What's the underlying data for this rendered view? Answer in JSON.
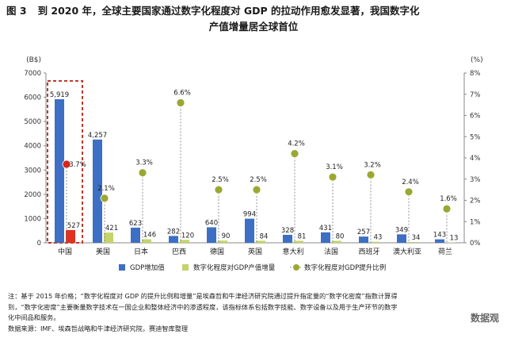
{
  "title": {
    "figure_no": "图 3",
    "line1": "到 2020 年，全球主要国家通过数字化程度对 GDP 的拉动作用愈发显著，我国数字化",
    "line2": "产值增量居全球首位"
  },
  "notes": {
    "line1": "注：基于 2015 年价格；“数字化程度对 GDP 的提升比例和增量”是埃森哲和牛津经济研究院通过提升指定量的“数字化密度”指数计算得",
    "line2": "到，“数字化密度”主要衡量数字技术在一国企业和整体经济中的渗透程度，该指标体系包括数字技能、数字设备以及用于生产环节的数字",
    "line3": "化中间品和服务。",
    "line4": "数据来源：IMF、埃森哲战略和牛津经济研究院，赛迪智库整理"
  },
  "watermark": "数据观",
  "chart_data": {
    "type": "bar",
    "left_axis_label": "(B$)",
    "right_axis_label": "(%)",
    "ylim_left": [
      0,
      7000
    ],
    "ylim_right": [
      0,
      8
    ],
    "left_ticks": [
      "0",
      "1000",
      "2000",
      "3000",
      "4000",
      "5000",
      "6000",
      "7000"
    ],
    "right_ticks": [
      "0%",
      "1%",
      "2%",
      "3%",
      "4%",
      "5%",
      "6%",
      "7%",
      "8%"
    ],
    "categories": [
      "中国",
      "美国",
      "日本",
      "巴西",
      "德国",
      "英国",
      "意大利",
      "法国",
      "西班牙",
      "澳大利亚",
      "荷兰"
    ],
    "series": [
      {
        "name": "GDP增加值",
        "axis": "left",
        "kind": "bar",
        "values": [
          5919,
          4257,
          623,
          282,
          640,
          994,
          328,
          431,
          257,
          349,
          143
        ],
        "labels": [
          "5,919",
          "4,257",
          "623",
          "282",
          "640",
          "994",
          "328",
          "431",
          "257",
          "349",
          "143"
        ]
      },
      {
        "name": "数字化程度对GDP产值增量",
        "axis": "left",
        "kind": "bar",
        "values": [
          527,
          421,
          146,
          120,
          90,
          84,
          81,
          80,
          43,
          34,
          13
        ],
        "labels": [
          "527",
          "421",
          "146",
          "120",
          "90",
          "84",
          "81",
          "80",
          "43",
          "34",
          "13"
        ]
      },
      {
        "name": "数字化程度对GDP提升比例",
        "axis": "right",
        "kind": "marker",
        "values": [
          3.7,
          2.1,
          3.3,
          6.6,
          2.5,
          2.5,
          4.2,
          3.1,
          3.2,
          2.4,
          1.6
        ],
        "labels": [
          "3.7%",
          "2.1%",
          "3.3%",
          "6.6%",
          "2.5%",
          "2.5%",
          "4.2%",
          "3.1%",
          "3.2%",
          "2.4%",
          "1.6%"
        ]
      }
    ],
    "colors": {
      "bar1": "#3d6fc4",
      "bar1_china": "#3d6fc4",
      "bar2": "#c5d36a",
      "bar2_china": "#e0321e",
      "marker": "#9aa832",
      "marker_china": "#d8221c",
      "highlight_box": "#c0392b"
    },
    "legend_position": "bottom-center",
    "grid": false
  }
}
